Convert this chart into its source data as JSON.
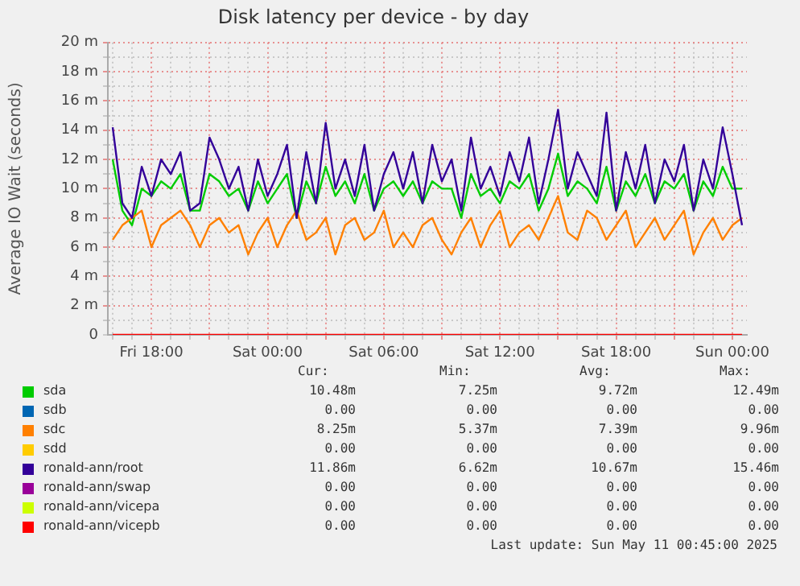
{
  "chart_data": {
    "type": "line",
    "title": "Disk latency per device - by day",
    "ylabel": "Average IO Wait (seconds)",
    "x": [
      "2025-05-09T16:00",
      "2025-05-09T16:30",
      "2025-05-09T17:00",
      "2025-05-09T17:30",
      "2025-05-09T18:00",
      "2025-05-09T18:30",
      "2025-05-09T19:00",
      "2025-05-09T19:30",
      "2025-05-09T20:00",
      "2025-05-09T20:30",
      "2025-05-09T21:00",
      "2025-05-09T21:30",
      "2025-05-09T22:00",
      "2025-05-09T22:30",
      "2025-05-09T23:00",
      "2025-05-09T23:30",
      "2025-05-10T00:00",
      "2025-05-10T00:30",
      "2025-05-10T01:00",
      "2025-05-10T01:30",
      "2025-05-10T02:00",
      "2025-05-10T02:30",
      "2025-05-10T03:00",
      "2025-05-10T03:30",
      "2025-05-10T04:00",
      "2025-05-10T04:30",
      "2025-05-10T05:00",
      "2025-05-10T05:30",
      "2025-05-10T06:00",
      "2025-05-10T06:30",
      "2025-05-10T07:00",
      "2025-05-10T07:30",
      "2025-05-10T08:00",
      "2025-05-10T08:30",
      "2025-05-10T09:00",
      "2025-05-10T09:30",
      "2025-05-10T10:00",
      "2025-05-10T10:30",
      "2025-05-10T11:00",
      "2025-05-10T11:30",
      "2025-05-10T12:00",
      "2025-05-10T12:30",
      "2025-05-10T13:00",
      "2025-05-10T13:30",
      "2025-05-10T14:00",
      "2025-05-10T14:30",
      "2025-05-10T15:00",
      "2025-05-10T15:30",
      "2025-05-10T16:00",
      "2025-05-10T16:30",
      "2025-05-10T17:00",
      "2025-05-10T17:30",
      "2025-05-10T18:00",
      "2025-05-10T18:30",
      "2025-05-10T19:00",
      "2025-05-10T19:30",
      "2025-05-10T20:00",
      "2025-05-10T20:30",
      "2025-05-10T21:00",
      "2025-05-10T21:30",
      "2025-05-10T22:00",
      "2025-05-10T22:30",
      "2025-05-10T23:00",
      "2025-05-10T23:30",
      "2025-05-11T00:00",
      "2025-05-11T00:30"
    ],
    "series": [
      {
        "name": "sda",
        "color": "#00cc00",
        "values": [
          12.0,
          8.5,
          7.5,
          10.0,
          9.5,
          10.5,
          10.0,
          11.0,
          8.5,
          8.5,
          11.0,
          10.5,
          9.5,
          10.0,
          8.5,
          10.5,
          9.0,
          10.0,
          11.0,
          8.0,
          10.5,
          9.0,
          11.5,
          9.5,
          10.5,
          9.0,
          11.0,
          8.5,
          10.0,
          10.5,
          9.5,
          10.5,
          9.0,
          10.5,
          10.0,
          10.0,
          8.0,
          11.0,
          9.5,
          10.0,
          9.0,
          10.5,
          10.0,
          11.0,
          8.5,
          10.0,
          12.4,
          9.5,
          10.5,
          10.0,
          9.0,
          11.5,
          8.5,
          10.5,
          9.5,
          11.0,
          9.0,
          10.5,
          10.0,
          11.0,
          8.5,
          10.5,
          9.5,
          11.5,
          10.0,
          10.0
        ]
      },
      {
        "name": "sdb",
        "color": "#0066b3",
        "values": [
          null,
          null,
          null,
          null,
          null,
          null,
          null,
          null,
          null,
          null,
          null,
          null,
          null,
          null,
          null,
          null,
          null,
          null,
          null,
          null,
          null,
          null,
          null,
          null,
          null,
          null,
          null,
          null,
          null,
          null,
          null,
          null,
          null,
          null,
          null,
          null,
          null,
          null,
          null,
          null,
          null,
          null,
          null,
          null,
          null,
          null,
          null,
          null,
          null,
          null,
          null,
          null,
          null,
          null,
          null,
          null,
          null,
          null,
          null,
          null,
          null,
          null,
          null,
          null,
          null,
          null
        ]
      },
      {
        "name": "sdc",
        "color": "#ff8000",
        "values": [
          6.5,
          7.5,
          8.0,
          8.5,
          6.0,
          7.5,
          8.0,
          8.5,
          7.5,
          6.0,
          7.5,
          8.0,
          7.0,
          7.5,
          5.5,
          7.0,
          8.0,
          6.0,
          7.5,
          8.5,
          6.5,
          7.0,
          8.0,
          5.5,
          7.5,
          8.0,
          6.5,
          7.0,
          8.5,
          6.0,
          7.0,
          6.0,
          7.5,
          8.0,
          6.5,
          5.5,
          7.0,
          8.0,
          6.0,
          7.5,
          8.5,
          6.0,
          7.0,
          7.5,
          6.5,
          8.0,
          9.5,
          7.0,
          6.5,
          8.5,
          8.0,
          6.5,
          7.5,
          8.5,
          6.0,
          7.0,
          8.0,
          6.5,
          7.5,
          8.5,
          5.5,
          7.0,
          8.0,
          6.5,
          7.5,
          8.0
        ]
      },
      {
        "name": "sdd",
        "color": "#ffcc00",
        "values": [
          null,
          null,
          null,
          null,
          null,
          null,
          null,
          null,
          null,
          null,
          null,
          null,
          null,
          null,
          null,
          null,
          null,
          null,
          null,
          null,
          null,
          null,
          null,
          null,
          null,
          null,
          null,
          null,
          null,
          null,
          null,
          null,
          null,
          null,
          null,
          null,
          null,
          null,
          null,
          null,
          null,
          null,
          null,
          null,
          null,
          null,
          null,
          null,
          null,
          null,
          null,
          null,
          null,
          null,
          null,
          null,
          null,
          null,
          null,
          null,
          null,
          null,
          null,
          null,
          null,
          null
        ]
      },
      {
        "name": "ronald-ann/root",
        "color": "#330099",
        "values": [
          14.2,
          9.0,
          8.0,
          11.5,
          9.5,
          12.0,
          11.0,
          12.5,
          8.5,
          9.0,
          13.5,
          12.0,
          10.0,
          11.5,
          8.5,
          12.0,
          9.5,
          11.0,
          13.0,
          8.0,
          12.5,
          9.0,
          14.5,
          10.0,
          12.0,
          9.5,
          13.0,
          8.5,
          11.0,
          12.5,
          10.0,
          12.5,
          9.0,
          13.0,
          10.5,
          12.0,
          8.5,
          13.5,
          10.0,
          11.5,
          9.5,
          12.5,
          10.5,
          13.5,
          9.0,
          12.0,
          15.4,
          10.0,
          12.5,
          11.0,
          9.5,
          15.2,
          8.5,
          12.5,
          10.0,
          13.0,
          9.0,
          12.0,
          10.5,
          13.0,
          8.5,
          12.0,
          10.0,
          14.2,
          11.0,
          7.5
        ]
      },
      {
        "name": "ronald-ann/swap",
        "color": "#990099",
        "values": [
          null,
          null,
          null,
          null,
          null,
          null,
          null,
          null,
          null,
          null,
          null,
          null,
          null,
          null,
          null,
          null,
          null,
          null,
          null,
          null,
          null,
          null,
          null,
          null,
          null,
          null,
          null,
          null,
          null,
          null,
          null,
          null,
          null,
          null,
          null,
          null,
          null,
          null,
          null,
          null,
          null,
          null,
          null,
          null,
          null,
          null,
          null,
          null,
          null,
          null,
          null,
          null,
          null,
          null,
          null,
          null,
          null,
          null,
          null,
          null,
          null,
          null,
          null,
          null,
          null,
          null
        ]
      },
      {
        "name": "ronald-ann/vicepa",
        "color": "#ccff00",
        "values": [
          null,
          null,
          null,
          null,
          null,
          null,
          null,
          null,
          null,
          null,
          null,
          null,
          null,
          null,
          null,
          null,
          null,
          null,
          null,
          null,
          null,
          null,
          null,
          null,
          null,
          null,
          null,
          null,
          null,
          null,
          null,
          null,
          null,
          null,
          null,
          null,
          null,
          null,
          null,
          null,
          null,
          null,
          null,
          null,
          null,
          null,
          null,
          null,
          null,
          null,
          null,
          null,
          null,
          null,
          null,
          null,
          null,
          null,
          null,
          null,
          null,
          null,
          null,
          null,
          null,
          null
        ]
      },
      {
        "name": "ronald-ann/vicepb",
        "color": "#ff0000",
        "values": [
          0,
          0,
          0,
          0,
          0,
          0,
          0,
          0,
          0,
          0,
          0,
          0,
          0,
          0,
          0,
          0,
          0,
          0,
          0,
          0,
          0,
          0,
          0,
          0,
          0,
          0,
          0,
          0,
          0,
          0,
          0,
          0,
          0,
          0,
          0,
          0,
          0,
          0,
          0,
          0,
          0,
          0,
          0,
          0,
          0,
          0,
          0,
          0,
          0,
          0,
          0,
          0,
          0,
          0,
          0,
          0,
          0,
          0,
          0,
          0,
          0,
          0,
          0,
          0,
          0,
          0
        ]
      }
    ],
    "xlim": [
      "2025-05-09T15:45",
      "2025-05-11T00:45"
    ],
    "xticks": [
      {
        "value": "2025-05-09T16:00",
        "label": null
      },
      {
        "value": "2025-05-09T17:00",
        "label": null
      },
      {
        "value": "2025-05-09T18:00",
        "label": "Fri 18:00"
      },
      {
        "value": "2025-05-09T19:00",
        "label": null
      },
      {
        "value": "2025-05-09T20:00",
        "label": null
      },
      {
        "value": "2025-05-09T21:00",
        "label": null
      },
      {
        "value": "2025-05-09T22:00",
        "label": null
      },
      {
        "value": "2025-05-09T23:00",
        "label": null
      },
      {
        "value": "2025-05-10T00:00",
        "label": "Sat 00:00"
      },
      {
        "value": "2025-05-10T01:00",
        "label": null
      },
      {
        "value": "2025-05-10T02:00",
        "label": null
      },
      {
        "value": "2025-05-10T03:00",
        "label": null
      },
      {
        "value": "2025-05-10T04:00",
        "label": null
      },
      {
        "value": "2025-05-10T05:00",
        "label": null
      },
      {
        "value": "2025-05-10T06:00",
        "label": "Sat 06:00"
      },
      {
        "value": "2025-05-10T07:00",
        "label": null
      },
      {
        "value": "2025-05-10T08:00",
        "label": null
      },
      {
        "value": "2025-05-10T09:00",
        "label": null
      },
      {
        "value": "2025-05-10T10:00",
        "label": null
      },
      {
        "value": "2025-05-10T11:00",
        "label": null
      },
      {
        "value": "2025-05-10T12:00",
        "label": "Sat 12:00"
      },
      {
        "value": "2025-05-10T13:00",
        "label": null
      },
      {
        "value": "2025-05-10T14:00",
        "label": null
      },
      {
        "value": "2025-05-10T15:00",
        "label": null
      },
      {
        "value": "2025-05-10T16:00",
        "label": null
      },
      {
        "value": "2025-05-10T17:00",
        "label": null
      },
      {
        "value": "2025-05-10T18:00",
        "label": "Sat 18:00"
      },
      {
        "value": "2025-05-10T19:00",
        "label": null
      },
      {
        "value": "2025-05-10T20:00",
        "label": null
      },
      {
        "value": "2025-05-10T21:00",
        "label": null
      },
      {
        "value": "2025-05-10T22:00",
        "label": null
      },
      {
        "value": "2025-05-10T23:00",
        "label": null
      },
      {
        "value": "2025-05-11T00:00",
        "label": "Sun 00:00"
      }
    ],
    "ylim": [
      0,
      20
    ],
    "yticks": [
      0,
      {
        "value": 1,
        "label": null
      },
      {
        "value": 2,
        "label": "2 m"
      },
      {
        "value": 3,
        "label": null
      },
      {
        "value": 4,
        "label": "4 m"
      },
      {
        "value": 5,
        "label": null
      },
      {
        "value": 6,
        "label": "6 m"
      },
      {
        "value": 7,
        "label": null
      },
      {
        "value": 8,
        "label": "8 m"
      },
      {
        "value": 9,
        "label": null
      },
      {
        "value": 10,
        "label": "10 m"
      },
      {
        "value": 11,
        "label": null
      },
      {
        "value": 12,
        "label": "12 m"
      },
      {
        "value": 13,
        "label": null
      },
      {
        "value": 14,
        "label": "14 m"
      },
      {
        "value": 15,
        "label": null
      },
      {
        "value": 16,
        "label": "16 m"
      },
      {
        "value": 17,
        "label": null
      },
      {
        "value": 18,
        "label": "18 m"
      },
      {
        "value": 19,
        "label": null
      },
      {
        "value": 20,
        "label": "20 m"
      }
    ],
    "grid": true,
    "legend": "bottom",
    "marker": "none",
    "line_style": "solid",
    "annotations": [
      "Cur:",
      "Min:",
      "Avg:",
      "Max:",
      "10.48m",
      "7.25m",
      "9.72m",
      "12.49m",
      "0.00",
      "0.00",
      "0.00",
      "0.00",
      "8.25m",
      "5.37m",
      "7.39m",
      "9.96m",
      "0.00",
      "0.00",
      "0.00",
      "0.00",
      "11.86m",
      "6.62m",
      "10.67m",
      "15.46m",
      "0.00",
      "0.00",
      "0.00",
      "0.00",
      "0.00",
      "0.00",
      "0.00",
      "0.00",
      "0.00",
      "0.00",
      "0.00",
      "0.00",
      "Last update:  Sun May 11 00:45:00 2025"
    ]
  }
}
